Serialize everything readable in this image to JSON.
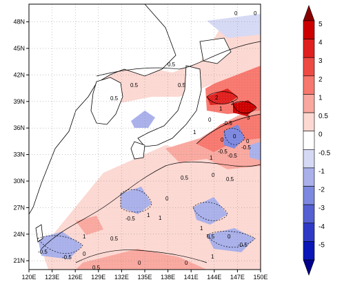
{
  "map": {
    "lon_ticks": [
      "120E",
      "123E",
      "126E",
      "129E",
      "132E",
      "135E",
      "138E",
      "141E",
      "144E",
      "147E",
      "150E"
    ],
    "lat_ticks": [
      "48N",
      "45N",
      "42N",
      "39N",
      "36N",
      "33N",
      "30N",
      "27N",
      "24N",
      "21N"
    ],
    "lon_range": [
      120,
      150
    ],
    "lat_range": [
      20,
      50
    ]
  },
  "colorbar": {
    "labels": [
      "5",
      "4",
      "3",
      "2",
      "1",
      "0.5",
      "0",
      "-0.5",
      "-1",
      "-2",
      "-3",
      "-4",
      "-5"
    ],
    "colors": [
      "#cc0000",
      "#e0201e",
      "#ee4a44",
      "#f7786e",
      "#f9a89f",
      "#fcd8d2",
      "#ffffff",
      "#d6d9f4",
      "#a9b0ea",
      "#7d88df",
      "#5560d2",
      "#2e3ac6",
      "#0a16b8"
    ],
    "top_arrow_color": "#880000",
    "bottom_arrow_color": "#00008a"
  },
  "contour_labels": [
    "0",
    "0",
    "0.5",
    "0.5",
    "0.5",
    "0.5",
    "2",
    "0",
    "-0.5",
    "0",
    "0",
    "-0.5",
    "1",
    "3",
    "2",
    "1",
    "0",
    "-0.5",
    "-0.5",
    "1",
    "0.5",
    "0",
    "-0.5",
    "1",
    "0",
    "0.5",
    "1",
    "-0.5",
    "1",
    "0.5",
    "-0.5",
    "0",
    "0",
    "0.5",
    "-0.5",
    "0",
    "1",
    "0.5",
    "0",
    "1"
  ]
}
